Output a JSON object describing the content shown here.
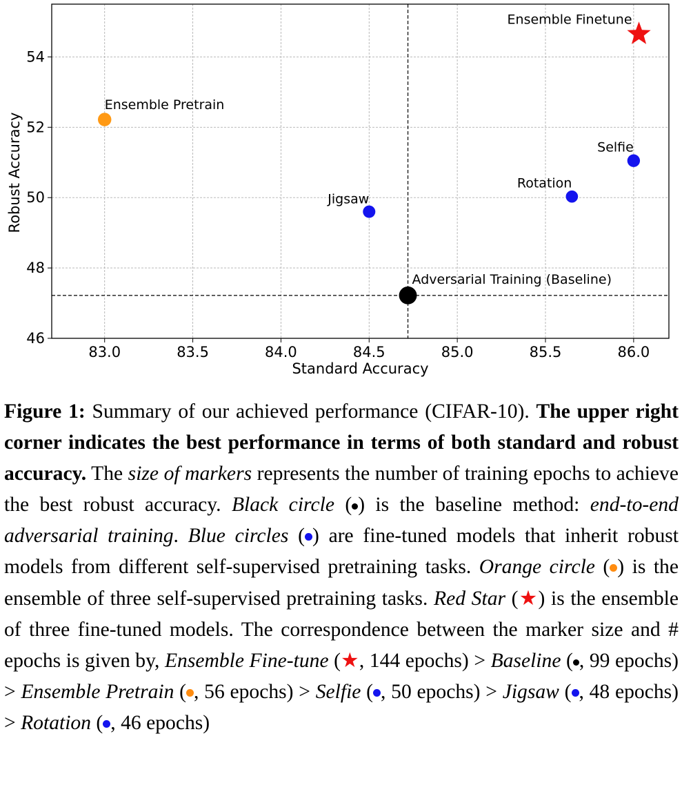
{
  "chart_data": {
    "type": "scatter",
    "xlabel": "Standard Accuracy",
    "ylabel": "Robust Accuracy",
    "xlim": [
      82.7,
      86.2
    ],
    "ylim": [
      46,
      55.5
    ],
    "xticks": [
      "83.0",
      "83.5",
      "84.0",
      "84.5",
      "85.0",
      "85.5",
      "86.0"
    ],
    "yticks": [
      "46",
      "48",
      "50",
      "52",
      "54"
    ],
    "grid": true,
    "points": [
      {
        "label": "Ensemble Finetune",
        "x": 86.03,
        "y": 54.65,
        "marker": "star",
        "color": "#ee1111",
        "epochs": 144
      },
      {
        "label": "Ensemble Pretrain",
        "x": 83.0,
        "y": 52.22,
        "marker": "circle",
        "color": "#ff9914",
        "epochs": 56
      },
      {
        "label": "Selfie",
        "x": 86.0,
        "y": 51.05,
        "marker": "circle",
        "color": "#1414ee",
        "epochs": 50
      },
      {
        "label": "Rotation",
        "x": 85.65,
        "y": 50.03,
        "marker": "circle",
        "color": "#1414ee",
        "epochs": 46
      },
      {
        "label": "Jigsaw",
        "x": 84.5,
        "y": 49.6,
        "marker": "circle",
        "color": "#1414ee",
        "epochs": 48
      },
      {
        "label": "Adversarial Training (Baseline)",
        "x": 84.72,
        "y": 47.22,
        "marker": "circle",
        "color": "#000000",
        "epochs": 99
      }
    ],
    "reference_lines": {
      "x": 84.72,
      "y": 47.22
    }
  },
  "caption": {
    "figure_label": "Figure 1:",
    "s1": "Summary of our achieved performance (CIFAR-10).",
    "s2_bold": "The upper right corner indicates the best performance in terms of both standard and robust accuracy.",
    "s3a": "The",
    "s3_ital": "size of markers",
    "s3b": "represents the number of training epochs to achieve the best robust accuracy.",
    "black_ital": "Black circle",
    "black_text": "is the baseline method:",
    "black_method_ital": "end-to-end adversarial training",
    "blue_ital": "Blue circles",
    "blue_text": "are fine-tuned models that inherit robust models from different self-supervised pretraining tasks.",
    "orange_ital": "Orange circle",
    "orange_text": "is the ensemble of three self-supervised pretraining tasks.",
    "red_ital": "Red Star",
    "red_text": "is the ensemble of three fine-tuned models.",
    "corr_a": "The correspondence between the",
    "corr_mono": "marker size",
    "corr_b": "and # epochs is given by,",
    "e1_name": "Ensemble Fine-tune",
    "e1_ep": ", 144 epochs)",
    "e2_name": "Baseline",
    "e2_ep": ", 99 epochs)",
    "e3_name": "Ensemble Pretrain",
    "e3_ep": ", 56 epochs)",
    "e4_name": "Selfie",
    "e4_ep": ", 50 epochs)",
    "e5_name": "Jigsaw",
    "e5_ep": ", 48 epochs)",
    "e6_name": "Rotation",
    "e6_ep": ", 46 epochs)",
    "gt": ">",
    "open_paren": "("
  },
  "colors": {
    "grid": "#b0b0b0",
    "star": "#ee1111",
    "blue": "#1414ee",
    "orange": "#ff9914",
    "black": "#000000"
  }
}
